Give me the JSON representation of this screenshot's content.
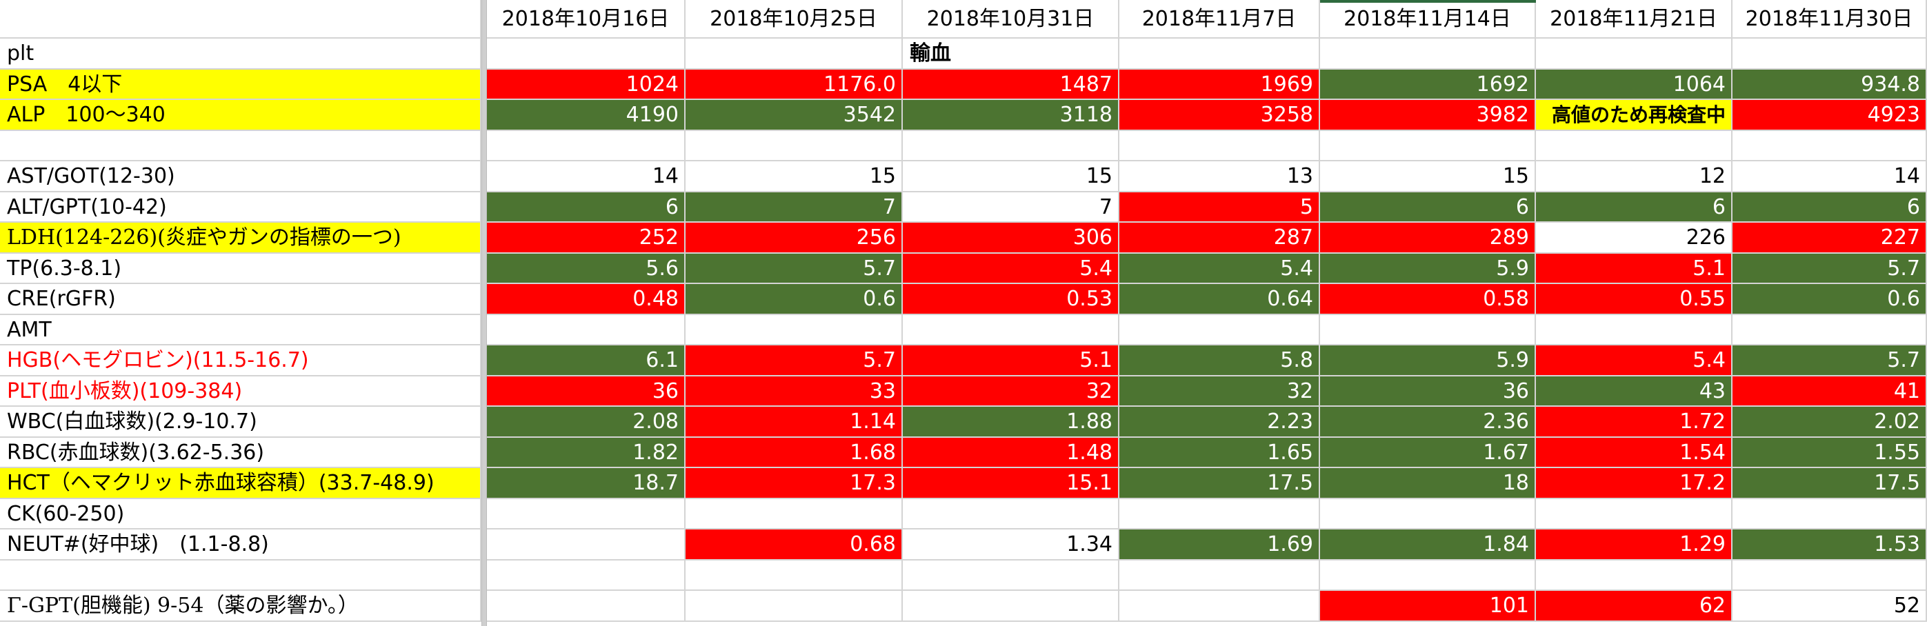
{
  "colors": {
    "red": "#ff0000",
    "green": "#4c7431",
    "yellow": "#ffff00",
    "white": "#ffffff",
    "gridline": "#d4d4d4",
    "selection": "#2e6b3e"
  },
  "header": {
    "dates": [
      "2018年10月16日",
      "2018年10月25日",
      "2018年10月31日",
      "2018年11月7日",
      "2018年11月14日",
      "2018年11月21日",
      "2018年11月30日"
    ]
  },
  "rows": [
    {
      "label": "plt",
      "label_fill": "white",
      "cells": [
        {
          "v": "",
          "fill": "white"
        },
        {
          "v": "",
          "fill": "white"
        },
        {
          "v": "輸血",
          "fill": "white",
          "align": "left",
          "bold": true
        },
        {
          "v": "",
          "fill": "white"
        },
        {
          "v": "",
          "fill": "white"
        },
        {
          "v": "",
          "fill": "white"
        },
        {
          "v": "",
          "fill": "white"
        }
      ]
    },
    {
      "label": "PSA　4以下",
      "label_fill": "yellow",
      "cells": [
        {
          "v": "1024",
          "fill": "red"
        },
        {
          "v": "1176.0",
          "fill": "red"
        },
        {
          "v": "1487",
          "fill": "red"
        },
        {
          "v": "1969",
          "fill": "red"
        },
        {
          "v": "1692",
          "fill": "green"
        },
        {
          "v": "1064",
          "fill": "green"
        },
        {
          "v": "934.8",
          "fill": "green"
        }
      ]
    },
    {
      "label": "ALP　100〜340",
      "label_fill": "yellow",
      "cells": [
        {
          "v": "4190",
          "fill": "green"
        },
        {
          "v": "3542",
          "fill": "green"
        },
        {
          "v": "3118",
          "fill": "green"
        },
        {
          "v": "3258",
          "fill": "red"
        },
        {
          "v": "3982",
          "fill": "red"
        },
        {
          "v": "高値のため再検査中",
          "fill": "yellow",
          "bold": true,
          "small": true
        },
        {
          "v": "4923",
          "fill": "red"
        }
      ]
    },
    {
      "label": "",
      "label_fill": "white",
      "cells": [
        {
          "v": "",
          "fill": "white"
        },
        {
          "v": "",
          "fill": "white"
        },
        {
          "v": "",
          "fill": "white"
        },
        {
          "v": "",
          "fill": "white"
        },
        {
          "v": "",
          "fill": "white"
        },
        {
          "v": "",
          "fill": "white"
        },
        {
          "v": "",
          "fill": "white"
        }
      ]
    },
    {
      "label": "AST/GOT(12-30)",
      "label_fill": "white",
      "cells": [
        {
          "v": "14",
          "fill": "white"
        },
        {
          "v": "15",
          "fill": "white"
        },
        {
          "v": "15",
          "fill": "white"
        },
        {
          "v": "13",
          "fill": "white"
        },
        {
          "v": "15",
          "fill": "white"
        },
        {
          "v": "12",
          "fill": "white"
        },
        {
          "v": "14",
          "fill": "white"
        }
      ]
    },
    {
      "label": "ALT/GPT(10-42)",
      "label_fill": "white",
      "cells": [
        {
          "v": "6",
          "fill": "green"
        },
        {
          "v": "7",
          "fill": "green"
        },
        {
          "v": "7",
          "fill": "white"
        },
        {
          "v": "5",
          "fill": "red"
        },
        {
          "v": "6",
          "fill": "green"
        },
        {
          "v": "6",
          "fill": "green"
        },
        {
          "v": "6",
          "fill": "green"
        }
      ]
    },
    {
      "label": "LDH(124-226)(炎症やガンの指標の一つ)",
      "label_fill": "yellow",
      "label_serif": true,
      "cells": [
        {
          "v": "252",
          "fill": "red"
        },
        {
          "v": "256",
          "fill": "red"
        },
        {
          "v": "306",
          "fill": "red"
        },
        {
          "v": "287",
          "fill": "red"
        },
        {
          "v": "289",
          "fill": "red"
        },
        {
          "v": "226",
          "fill": "white"
        },
        {
          "v": "227",
          "fill": "red"
        }
      ]
    },
    {
      "label": "TP(6.3-8.1)",
      "label_fill": "white",
      "cells": [
        {
          "v": "5.6",
          "fill": "green"
        },
        {
          "v": "5.7",
          "fill": "green"
        },
        {
          "v": "5.4",
          "fill": "red"
        },
        {
          "v": "5.4",
          "fill": "green"
        },
        {
          "v": "5.9",
          "fill": "green"
        },
        {
          "v": "5.1",
          "fill": "red"
        },
        {
          "v": "5.7",
          "fill": "green"
        }
      ]
    },
    {
      "label": "CRE(rGFR)",
      "label_fill": "white",
      "cells": [
        {
          "v": "0.48",
          "fill": "red"
        },
        {
          "v": "0.6",
          "fill": "green"
        },
        {
          "v": "0.53",
          "fill": "red"
        },
        {
          "v": "0.64",
          "fill": "green"
        },
        {
          "v": "0.58",
          "fill": "red"
        },
        {
          "v": "0.55",
          "fill": "red"
        },
        {
          "v": "0.6",
          "fill": "green"
        }
      ]
    },
    {
      "label": "AMT",
      "label_fill": "white",
      "cells": [
        {
          "v": "",
          "fill": "white"
        },
        {
          "v": "",
          "fill": "white"
        },
        {
          "v": "",
          "fill": "white"
        },
        {
          "v": "",
          "fill": "white"
        },
        {
          "v": "",
          "fill": "white"
        },
        {
          "v": "",
          "fill": "white"
        },
        {
          "v": "",
          "fill": "white"
        }
      ]
    },
    {
      "label": "HGB(ヘモグロビン)(11.5-16.7)",
      "label_fill": "white",
      "label_red": true,
      "cells": [
        {
          "v": "6.1",
          "fill": "green"
        },
        {
          "v": "5.7",
          "fill": "red"
        },
        {
          "v": "5.1",
          "fill": "red"
        },
        {
          "v": "5.8",
          "fill": "green"
        },
        {
          "v": "5.9",
          "fill": "green"
        },
        {
          "v": "5.4",
          "fill": "red"
        },
        {
          "v": "5.7",
          "fill": "green"
        }
      ]
    },
    {
      "label": "PLT(血小板数)(109-384)",
      "label_fill": "white",
      "label_red": true,
      "cells": [
        {
          "v": "36",
          "fill": "red"
        },
        {
          "v": "33",
          "fill": "red"
        },
        {
          "v": "32",
          "fill": "red"
        },
        {
          "v": "32",
          "fill": "green"
        },
        {
          "v": "36",
          "fill": "green"
        },
        {
          "v": "43",
          "fill": "green"
        },
        {
          "v": "41",
          "fill": "red"
        }
      ]
    },
    {
      "label": "WBC(白血球数)(2.9-10.7)",
      "label_fill": "white",
      "cells": [
        {
          "v": "2.08",
          "fill": "green"
        },
        {
          "v": "1.14",
          "fill": "red"
        },
        {
          "v": "1.88",
          "fill": "green"
        },
        {
          "v": "2.23",
          "fill": "green"
        },
        {
          "v": "2.36",
          "fill": "green"
        },
        {
          "v": "1.72",
          "fill": "red"
        },
        {
          "v": "2.02",
          "fill": "green"
        }
      ]
    },
    {
      "label": "RBC(赤血球数)(3.62-5.36)",
      "label_fill": "white",
      "cells": [
        {
          "v": "1.82",
          "fill": "green"
        },
        {
          "v": "1.68",
          "fill": "red"
        },
        {
          "v": "1.48",
          "fill": "red"
        },
        {
          "v": "1.65",
          "fill": "green"
        },
        {
          "v": "1.67",
          "fill": "green"
        },
        {
          "v": "1.54",
          "fill": "red"
        },
        {
          "v": "1.55",
          "fill": "green"
        }
      ]
    },
    {
      "label": "HCT（ヘマクリット赤血球容積）(33.7-48.9)",
      "label_fill": "yellow",
      "cells": [
        {
          "v": "18.7",
          "fill": "green"
        },
        {
          "v": "17.3",
          "fill": "red"
        },
        {
          "v": "15.1",
          "fill": "red"
        },
        {
          "v": "17.5",
          "fill": "green"
        },
        {
          "v": "18",
          "fill": "green"
        },
        {
          "v": "17.2",
          "fill": "red"
        },
        {
          "v": "17.5",
          "fill": "green"
        }
      ]
    },
    {
      "label": "CK(60-250)",
      "label_fill": "white",
      "cells": [
        {
          "v": "",
          "fill": "white"
        },
        {
          "v": "",
          "fill": "white"
        },
        {
          "v": "",
          "fill": "white"
        },
        {
          "v": "",
          "fill": "white"
        },
        {
          "v": "",
          "fill": "white"
        },
        {
          "v": "",
          "fill": "white"
        },
        {
          "v": "",
          "fill": "white"
        }
      ]
    },
    {
      "label": "NEUT#(好中球)　(1.1-8.8)",
      "label_fill": "white",
      "cells": [
        {
          "v": "",
          "fill": "white"
        },
        {
          "v": "0.68",
          "fill": "red"
        },
        {
          "v": "1.34",
          "fill": "white"
        },
        {
          "v": "1.69",
          "fill": "green"
        },
        {
          "v": "1.84",
          "fill": "green"
        },
        {
          "v": "1.29",
          "fill": "red"
        },
        {
          "v": "1.53",
          "fill": "green"
        }
      ]
    },
    {
      "label": "",
      "label_fill": "white",
      "cells": [
        {
          "v": "",
          "fill": "white"
        },
        {
          "v": "",
          "fill": "white"
        },
        {
          "v": "",
          "fill": "white"
        },
        {
          "v": "",
          "fill": "white"
        },
        {
          "v": "",
          "fill": "white"
        },
        {
          "v": "",
          "fill": "white"
        },
        {
          "v": "",
          "fill": "white"
        }
      ]
    },
    {
      "label": "Γ-GPT(胆機能) 9-54（薬の影響か。）",
      "label_fill": "white",
      "label_serif": true,
      "cells": [
        {
          "v": "",
          "fill": "white"
        },
        {
          "v": "",
          "fill": "white"
        },
        {
          "v": "",
          "fill": "white"
        },
        {
          "v": "",
          "fill": "white"
        },
        {
          "v": "101",
          "fill": "red"
        },
        {
          "v": "62",
          "fill": "red"
        },
        {
          "v": "52",
          "fill": "white"
        }
      ]
    }
  ]
}
